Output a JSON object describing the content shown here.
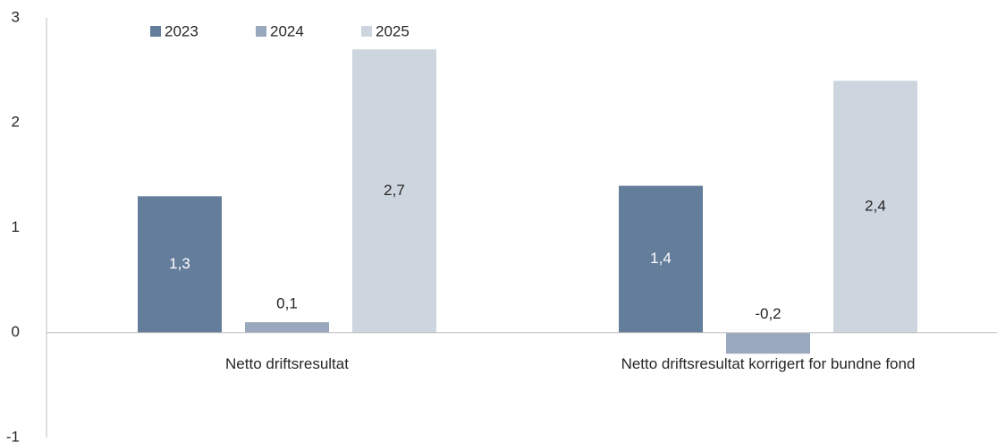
{
  "chart_data": {
    "type": "bar",
    "categories": [
      "Netto driftsresultat",
      "Netto driftsresultat korrigert for bundne fond"
    ],
    "series": [
      {
        "name": "2023",
        "color": "#647d9b",
        "values": [
          1.3,
          1.4
        ],
        "value_labels": [
          "1,3",
          "1,4"
        ],
        "label_color": "#ffffff"
      },
      {
        "name": "2024",
        "color": "#9aa8bd",
        "values": [
          0.1,
          -0.2
        ],
        "value_labels": [
          "0,1",
          "-0,2"
        ],
        "label_color": "#262626"
      },
      {
        "name": "2025",
        "color": "#cdd5df",
        "values": [
          2.7,
          2.4
        ],
        "value_labels": [
          "2,7",
          "2,4"
        ],
        "label_color": "#262626"
      }
    ],
    "ylim": [
      -1,
      3
    ],
    "yticks": [
      -1,
      0,
      1,
      2,
      3
    ],
    "legend": "top"
  }
}
